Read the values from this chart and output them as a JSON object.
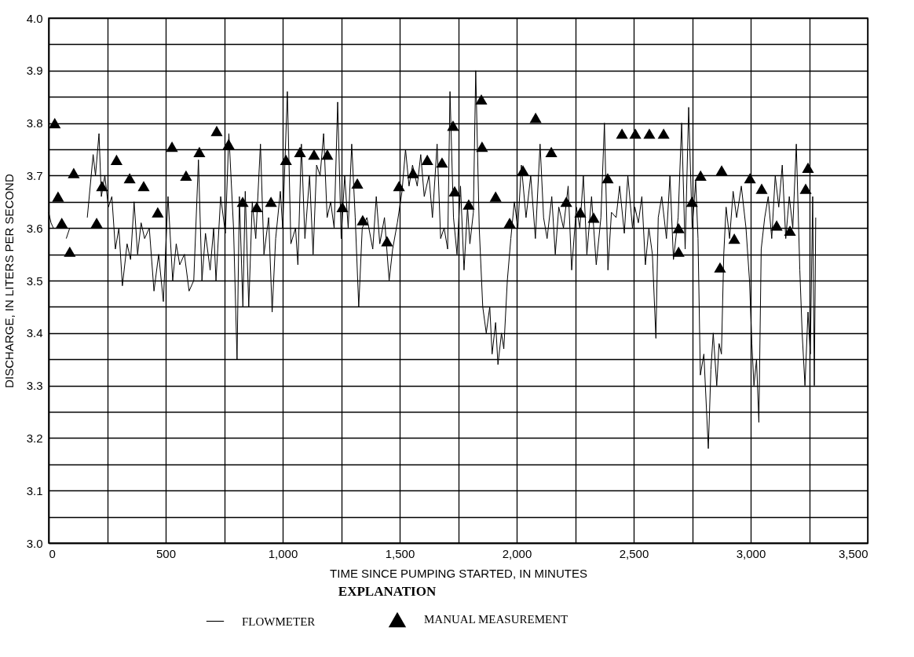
{
  "chart_data": {
    "type": "line",
    "xlabel": "TIME SINCE PUMPING STARTED, IN MINUTES",
    "ylabel": "DISCHARGE, IN LITERS PER SECOND",
    "legend_title": "EXPLANATION",
    "legend": "bottom",
    "grid": true,
    "xlim": [
      0,
      3500
    ],
    "ylim": [
      3.0,
      4.0
    ],
    "xticks": [
      0,
      {
        "value": 250,
        "label": null
      },
      500,
      {
        "value": 750,
        "label": null
      },
      {
        "value": 1000,
        "label": "1,000"
      },
      {
        "value": 1250,
        "label": null
      },
      {
        "value": 1500,
        "label": "1,500"
      },
      {
        "value": 1750,
        "label": null
      },
      {
        "value": 2000,
        "label": "2,000"
      },
      {
        "value": 2250,
        "label": null
      },
      {
        "value": 2500,
        "label": "2,500"
      },
      {
        "value": 2750,
        "label": null
      },
      {
        "value": 3000,
        "label": "3,000"
      },
      {
        "value": 3250,
        "label": null
      },
      {
        "value": 3500,
        "label": "3,500"
      }
    ],
    "yticks": [
      {
        "value": 3.0,
        "label": "3.0"
      },
      {
        "value": 3.05,
        "label": null
      },
      3.1,
      {
        "value": 3.15,
        "label": null
      },
      3.2,
      {
        "value": 3.25,
        "label": null
      },
      3.3,
      {
        "value": 3.35,
        "label": null
      },
      3.4,
      {
        "value": 3.45,
        "label": null
      },
      3.5,
      {
        "value": 3.55,
        "label": null
      },
      3.6,
      {
        "value": 3.65,
        "label": null
      },
      3.7,
      {
        "value": 3.75,
        "label": null
      },
      3.8,
      {
        "value": 3.85,
        "label": null
      },
      3.9,
      {
        "value": 3.95,
        "label": null
      },
      {
        "value": 4.0,
        "label": "4.0"
      }
    ],
    "series": [
      {
        "name": "FLOWMETER",
        "type": "line",
        "color": "#000000",
        "line_style": "solid",
        "x": [
          0,
          10,
          20,
          40,
          75,
          90,
          130,
          165,
          190,
          200,
          215,
          225,
          240,
          255,
          270,
          285,
          300,
          315,
          335,
          350,
          365,
          380,
          395,
          410,
          430,
          450,
          470,
          490,
          510,
          530,
          545,
          560,
          580,
          600,
          620,
          640,
          655,
          670,
          690,
          705,
          715,
          735,
          755,
          770,
          790,
          805,
          815,
          830,
          840,
          855,
          870,
          885,
          905,
          920,
          940,
          955,
          970,
          990,
          1000,
          1020,
          1035,
          1055,
          1065,
          1080,
          1095,
          1115,
          1130,
          1145,
          1160,
          1175,
          1190,
          1205,
          1220,
          1235,
          1250,
          1265,
          1280,
          1295,
          1310,
          1325,
          1340,
          1360,
          1385,
          1400,
          1415,
          1435,
          1455,
          1470,
          1490,
          1510,
          1525,
          1540,
          1555,
          1575,
          1590,
          1605,
          1625,
          1640,
          1660,
          1675,
          1690,
          1705,
          1715,
          1730,
          1745,
          1760,
          1775,
          1790,
          1800,
          1815,
          1825,
          1840,
          1855,
          1870,
          1885,
          1895,
          1910,
          1920,
          1935,
          1945,
          1960,
          1975,
          1990,
          2005,
          2020,
          2040,
          2060,
          2080,
          2100,
          2115,
          2130,
          2150,
          2165,
          2180,
          2200,
          2220,
          2235,
          2255,
          2270,
          2285,
          2300,
          2320,
          2340,
          2360,
          2375,
          2390,
          2405,
          2425,
          2440,
          2460,
          2475,
          2495,
          2505,
          2520,
          2535,
          2550,
          2565,
          2580,
          2595,
          2605,
          2620,
          2640,
          2655,
          2670,
          2690,
          2705,
          2720,
          2735,
          2750,
          2765,
          2775,
          2785,
          2800,
          2819,
          2830,
          2840,
          2855,
          2865,
          2875,
          2885,
          2895,
          2910,
          2925,
          2940,
          2960,
          2980,
          2995,
          3005,
          3014,
          3025,
          3035,
          3045,
          3060,
          3075,
          3090,
          3105,
          3120,
          3135,
          3150,
          3165,
          3180,
          3195,
          3210,
          3220,
          3232,
          3245,
          3255,
          3265,
          3272,
          3278
        ],
        "values": [
          3.63,
          3.61,
          3.6,
          null,
          3.58,
          3.6,
          null,
          3.62,
          3.74,
          3.7,
          3.78,
          3.66,
          3.7,
          3.64,
          3.66,
          3.56,
          3.6,
          3.49,
          3.57,
          3.54,
          3.65,
          3.55,
          3.61,
          3.58,
          3.6,
          3.48,
          3.55,
          3.46,
          3.66,
          3.5,
          3.57,
          3.53,
          3.55,
          3.48,
          3.5,
          3.73,
          3.5,
          3.59,
          3.52,
          3.6,
          3.5,
          3.66,
          3.59,
          3.78,
          3.6,
          3.35,
          3.66,
          3.45,
          3.67,
          3.45,
          3.65,
          3.58,
          3.76,
          3.55,
          3.62,
          3.44,
          3.58,
          3.67,
          3.6,
          3.86,
          3.57,
          3.6,
          3.53,
          3.76,
          3.58,
          3.7,
          3.55,
          3.72,
          3.7,
          3.78,
          3.62,
          3.65,
          3.6,
          3.84,
          3.58,
          3.7,
          3.6,
          3.76,
          3.62,
          3.45,
          3.6,
          3.62,
          3.56,
          3.66,
          3.57,
          3.62,
          3.5,
          3.56,
          3.61,
          3.67,
          3.75,
          3.68,
          3.72,
          3.68,
          3.74,
          3.66,
          3.7,
          3.62,
          3.76,
          3.58,
          3.6,
          3.56,
          3.86,
          3.62,
          3.55,
          3.68,
          3.52,
          3.64,
          3.57,
          3.63,
          3.9,
          3.6,
          3.45,
          3.4,
          3.45,
          3.36,
          3.42,
          3.34,
          3.4,
          3.37,
          3.5,
          3.58,
          3.65,
          3.6,
          3.72,
          3.62,
          3.7,
          3.58,
          3.76,
          3.62,
          3.58,
          3.66,
          3.55,
          3.64,
          3.6,
          3.68,
          3.52,
          3.64,
          3.6,
          3.7,
          3.55,
          3.66,
          3.53,
          3.62,
          3.8,
          3.52,
          3.63,
          3.62,
          3.68,
          3.59,
          3.7,
          3.6,
          3.64,
          3.61,
          3.66,
          3.53,
          3.6,
          3.55,
          3.39,
          3.62,
          3.66,
          3.58,
          3.7,
          3.54,
          3.62,
          3.8,
          3.56,
          3.83,
          3.6,
          3.69,
          3.58,
          3.32,
          3.36,
          3.18,
          3.33,
          3.4,
          3.3,
          3.38,
          3.36,
          3.55,
          3.64,
          3.58,
          3.67,
          3.62,
          3.68,
          3.6,
          3.5,
          3.38,
          3.3,
          3.35,
          3.23,
          3.56,
          3.62,
          3.66,
          3.58,
          3.7,
          3.64,
          3.72,
          3.58,
          3.66,
          3.6,
          3.76,
          3.52,
          3.4,
          3.3,
          3.44,
          3.36,
          3.66,
          3.3,
          3.62
        ]
      },
      {
        "name": "MANUAL MEASUREMENT",
        "type": "scatter",
        "color": "#000000",
        "marker": "triangle",
        "x": [
          26,
          40,
          56,
          90,
          107,
          205,
          228,
          290,
          346,
          406,
          466,
          527,
          587,
          644,
          718,
          769,
          829,
          889,
          950,
          1014,
          1074,
          1134,
          1191,
          1255,
          1319,
          1342,
          1446,
          1497,
          1557,
          1618,
          1681,
          1728,
          1735,
          1795,
          1849,
          1852,
          1910,
          1970,
          2027,
          2081,
          2148,
          2212,
          2272,
          2329,
          2389,
          2450,
          2507,
          2567,
          2628,
          2692,
          2692,
          2749,
          2786,
          2869,
          2876,
          2930,
          2997,
          3047,
          3111,
          3168,
          3235,
          3245
        ],
        "values": [
          3.8,
          3.66,
          3.61,
          3.555,
          3.705,
          3.61,
          3.68,
          3.73,
          3.695,
          3.68,
          3.63,
          3.755,
          3.7,
          3.745,
          3.785,
          3.76,
          3.65,
          3.64,
          3.65,
          3.73,
          3.745,
          3.74,
          3.74,
          3.64,
          3.685,
          3.615,
          3.575,
          3.68,
          3.705,
          3.73,
          3.725,
          3.795,
          3.67,
          3.645,
          3.845,
          3.755,
          3.66,
          3.61,
          3.71,
          3.81,
          3.745,
          3.65,
          3.63,
          3.62,
          3.695,
          3.78,
          3.78,
          3.78,
          3.78,
          3.6,
          3.555,
          3.65,
          3.7,
          3.525,
          3.71,
          3.58,
          3.695,
          3.675,
          3.605,
          3.595,
          3.675,
          3.715
        ]
      }
    ]
  }
}
